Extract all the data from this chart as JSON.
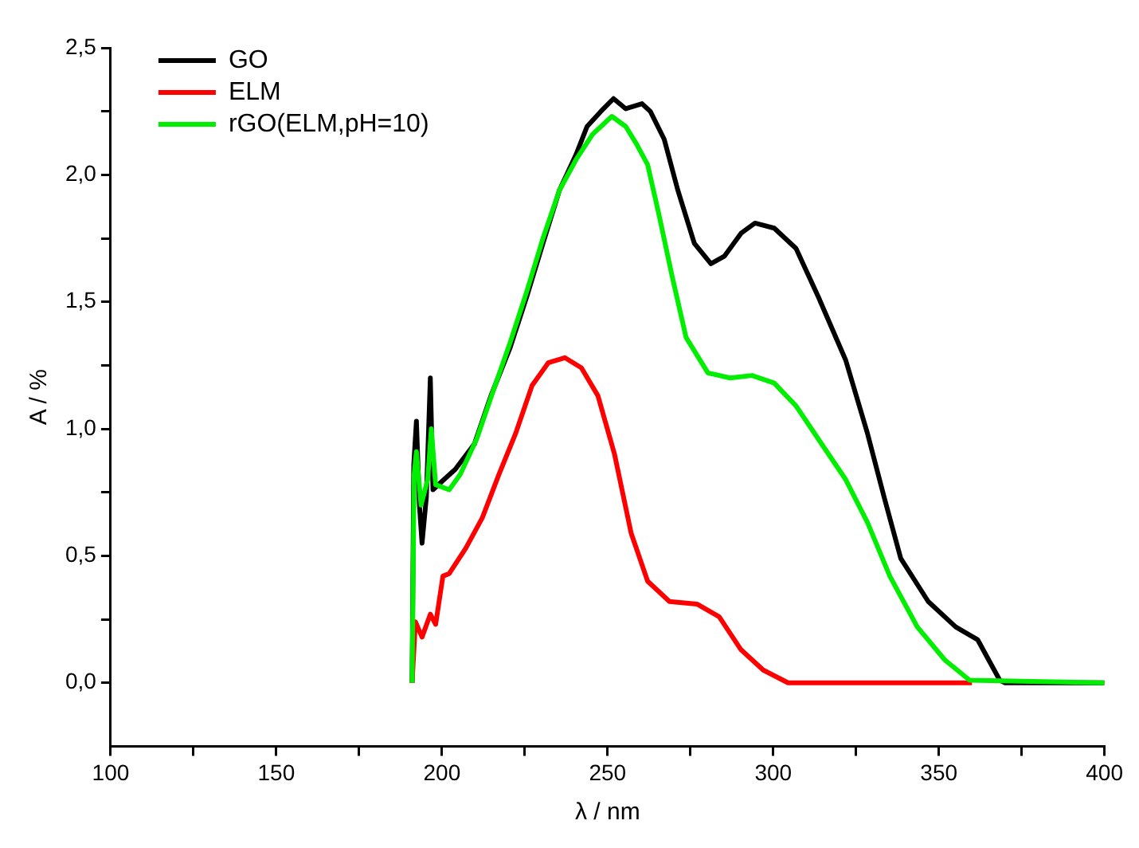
{
  "chart_data": {
    "type": "line",
    "xlabel": "λ / nm",
    "ylabel": "A / %",
    "xlim": [
      100,
      400
    ],
    "ylim": [
      -0.25,
      2.5
    ],
    "xticks": [
      100,
      {
        "value": 125,
        "label": null
      },
      150,
      {
        "value": 175,
        "label": null
      },
      200,
      {
        "value": 225,
        "label": null
      },
      250,
      {
        "value": 275,
        "label": null
      },
      300,
      {
        "value": 325,
        "label": null
      },
      350,
      {
        "value": 375,
        "label": null
      },
      400
    ],
    "yticks": [
      {
        "value": 0,
        "label": "0,0"
      },
      {
        "value": 0.25,
        "label": null
      },
      {
        "value": 0.5,
        "label": "0,5"
      },
      {
        "value": 0.75,
        "label": null
      },
      {
        "value": 1,
        "label": "1,0"
      },
      {
        "value": 1.25,
        "label": null
      },
      {
        "value": 1.5,
        "label": "1,5"
      },
      {
        "value": 1.75,
        "label": null
      },
      {
        "value": 2,
        "label": "2,0"
      },
      {
        "value": 2.25,
        "label": null
      },
      {
        "value": 2.5,
        "label": "2,5"
      }
    ],
    "grid": false,
    "legend": "top left",
    "marker": "none",
    "line_style": "solid",
    "series": [
      {
        "name": "GO",
        "color": "#000000",
        "x": [
          191.0,
          191.5,
          192.3,
          193.2,
          194.0,
          195.3,
          196.5,
          197.3,
          200.6,
          204.0,
          209.8,
          214.8,
          220.6,
          225.6,
          230.5,
          235.5,
          240.5,
          243.8,
          248.0,
          251.8,
          255.5,
          260.4,
          262.9,
          267.1,
          271.2,
          276.2,
          281.2,
          285.3,
          290.3,
          294.5,
          300.3,
          306.9,
          313.6,
          321.9,
          328.5,
          333.5,
          338.5,
          346.8,
          355.1,
          361.7,
          368.4,
          370,
          400
        ],
        "values": [
          0,
          0.86,
          1.03,
          0.7,
          0.55,
          0.73,
          1.2,
          0.76,
          0.8,
          0.84,
          0.94,
          1.13,
          1.32,
          1.52,
          1.73,
          1.94,
          2.08,
          2.19,
          2.25,
          2.3,
          2.26,
          2.28,
          2.25,
          2.14,
          1.94,
          1.73,
          1.65,
          1.68,
          1.77,
          1.81,
          1.79,
          1.71,
          1.52,
          1.27,
          0.98,
          0.73,
          0.49,
          0.32,
          0.22,
          0.17,
          0.01,
          0,
          0
        ]
      },
      {
        "name": "ELM",
        "color": "#ff0000",
        "x": [
          191.0,
          192.0,
          194.0,
          196.5,
          198.1,
          200.3,
          202.2,
          207.2,
          212.2,
          217.2,
          222.2,
          227.2,
          232.1,
          237.1,
          242.1,
          247.1,
          252.1,
          257.1,
          262.1,
          268.7,
          277.0,
          283.7,
          290.3,
          297.0,
          304.5,
          360
        ],
        "values": [
          0,
          0.24,
          0.18,
          0.27,
          0.23,
          0.42,
          0.43,
          0.53,
          0.65,
          0.82,
          0.98,
          1.17,
          1.26,
          1.28,
          1.24,
          1.13,
          0.9,
          0.59,
          0.4,
          0.32,
          0.31,
          0.26,
          0.13,
          0.05,
          0,
          0
        ]
      },
      {
        "name": "rGO(ELM,pH=10)",
        "color": "#00ee00",
        "x": [
          191.0,
          191.6,
          192.3,
          193.7,
          195.7,
          196.8,
          198.1,
          202.2,
          205.5,
          210.5,
          215.5,
          220.6,
          225.6,
          230.5,
          235.5,
          240.5,
          245.5,
          251.3,
          255.5,
          258.8,
          262.1,
          265.4,
          269.5,
          273.7,
          280.3,
          287.0,
          293.6,
          300.3,
          306.9,
          313.6,
          321.9,
          328.5,
          335.2,
          343.5,
          351.8,
          359.3,
          400
        ],
        "values": [
          0,
          0.82,
          0.91,
          0.7,
          0.8,
          1.0,
          0.78,
          0.76,
          0.82,
          0.96,
          1.15,
          1.34,
          1.54,
          1.75,
          1.94,
          2.06,
          2.16,
          2.23,
          2.19,
          2.12,
          2.04,
          1.85,
          1.6,
          1.36,
          1.22,
          1.2,
          1.21,
          1.18,
          1.09,
          0.96,
          0.8,
          0.63,
          0.42,
          0.22,
          0.09,
          0.01,
          0
        ]
      }
    ]
  }
}
